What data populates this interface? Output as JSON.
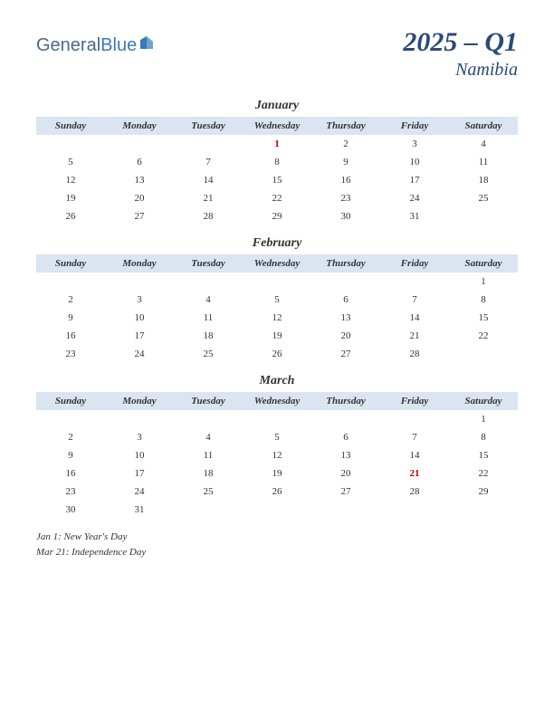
{
  "logo": {
    "text1": "General",
    "text2": "Blue"
  },
  "title": {
    "main": "2025 – Q1",
    "sub": "Namibia"
  },
  "colors": {
    "header_bg": "#dbe5f1",
    "title_color": "#2a4a7a",
    "holiday_color": "#c00000",
    "text_color": "#333333",
    "background": "#ffffff"
  },
  "day_headers": [
    "Sunday",
    "Monday",
    "Tuesday",
    "Wednesday",
    "Thursday",
    "Friday",
    "Saturday"
  ],
  "months": [
    {
      "name": "January",
      "weeks": [
        [
          "",
          "",
          "",
          "1",
          "2",
          "3",
          "4"
        ],
        [
          "5",
          "6",
          "7",
          "8",
          "9",
          "10",
          "11"
        ],
        [
          "12",
          "13",
          "14",
          "15",
          "16",
          "17",
          "18"
        ],
        [
          "19",
          "20",
          "21",
          "22",
          "23",
          "24",
          "25"
        ],
        [
          "26",
          "27",
          "28",
          "29",
          "30",
          "31",
          ""
        ]
      ],
      "holidays": [
        "1"
      ]
    },
    {
      "name": "February",
      "weeks": [
        [
          "",
          "",
          "",
          "",
          "",
          "",
          "1"
        ],
        [
          "2",
          "3",
          "4",
          "5",
          "6",
          "7",
          "8"
        ],
        [
          "9",
          "10",
          "11",
          "12",
          "13",
          "14",
          "15"
        ],
        [
          "16",
          "17",
          "18",
          "19",
          "20",
          "21",
          "22"
        ],
        [
          "23",
          "24",
          "25",
          "26",
          "27",
          "28",
          ""
        ]
      ],
      "holidays": []
    },
    {
      "name": "March",
      "weeks": [
        [
          "",
          "",
          "",
          "",
          "",
          "",
          "1"
        ],
        [
          "2",
          "3",
          "4",
          "5",
          "6",
          "7",
          "8"
        ],
        [
          "9",
          "10",
          "11",
          "12",
          "13",
          "14",
          "15"
        ],
        [
          "16",
          "17",
          "18",
          "19",
          "20",
          "21",
          "22"
        ],
        [
          "23",
          "24",
          "25",
          "26",
          "27",
          "28",
          "29"
        ],
        [
          "30",
          "31",
          "",
          "",
          "",
          "",
          ""
        ]
      ],
      "holidays": [
        "21"
      ]
    }
  ],
  "holiday_notes": [
    "Jan 1: New Year's Day",
    "Mar 21: Independence Day"
  ]
}
